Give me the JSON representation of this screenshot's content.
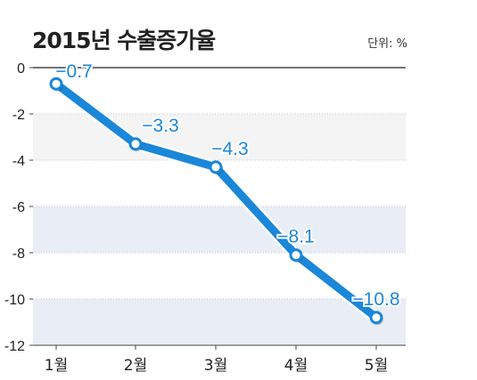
{
  "title": "2015년 수출증가율",
  "unit_label": "단위: %",
  "colors": {
    "line": "#1b87d9",
    "label": "#1b87d9",
    "band": "#e8edf6",
    "band_light": "#f4f4f4",
    "axis": "#222222"
  },
  "chart_data": {
    "type": "line",
    "title": "2015년 수출증가율",
    "xlabel": "",
    "ylabel": "",
    "categories": [
      "1월",
      "2월",
      "3월",
      "4월",
      "5월"
    ],
    "series": [
      {
        "values": [
          -0.7,
          -3.3,
          -4.3,
          -8.1,
          -10.8
        ]
      }
    ],
    "value_labels": [
      "−0.7",
      "−3.3",
      "−4.3",
      "−8.1",
      "−10.8"
    ],
    "ylim": [
      -12,
      0
    ],
    "yticks": [
      0,
      -2,
      -4,
      -6,
      -8,
      -10,
      -12
    ],
    "ytick_labels": [
      "0",
      "-2",
      "-4",
      "-6",
      "-8",
      "-10",
      "-12"
    ],
    "grid": true,
    "legend": "none"
  }
}
